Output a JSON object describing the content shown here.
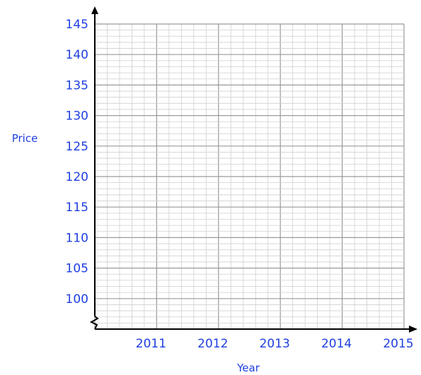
{
  "chart_data": {
    "type": "line",
    "title": "",
    "xlabel": "Year",
    "ylabel": "Price",
    "x_ticks": [
      "2011",
      "2012",
      "2013",
      "2014",
      "2015"
    ],
    "y_ticks": [
      "145",
      "140",
      "135",
      "130",
      "125",
      "120",
      "115",
      "110",
      "105",
      "100"
    ],
    "xlim": [
      2010,
      2015
    ],
    "ylim": [
      95,
      145
    ],
    "y_axis_break": true,
    "grid": true,
    "grid_minor_per_major": 5,
    "series": []
  },
  "colors": {
    "text": "#1f3fe0",
    "grid_minor": "#cfcfcf",
    "grid_major": "#9a9a9a",
    "axis": "#000000"
  }
}
